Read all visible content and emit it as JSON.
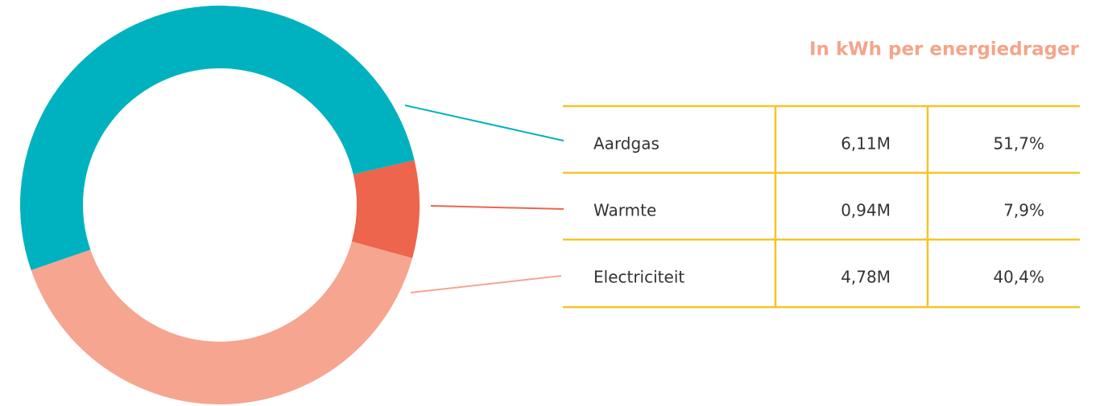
{
  "chart_data": {
    "type": "donut",
    "title": "In kWh per energiedrager",
    "categories": [
      "Aardgas",
      "Warmte",
      "Electriciteit"
    ],
    "values": [
      51.7,
      7.9,
      40.4
    ],
    "value_labels": [
      "51,7%",
      "7,9%",
      "40,4%"
    ],
    "amounts": [
      6110000,
      940000,
      4780000
    ],
    "amount_labels": [
      "6,11M",
      "0,94M",
      "4,78M"
    ],
    "colors": [
      "#00b2bf",
      "#ec654c",
      "#f6a590"
    ]
  }
}
